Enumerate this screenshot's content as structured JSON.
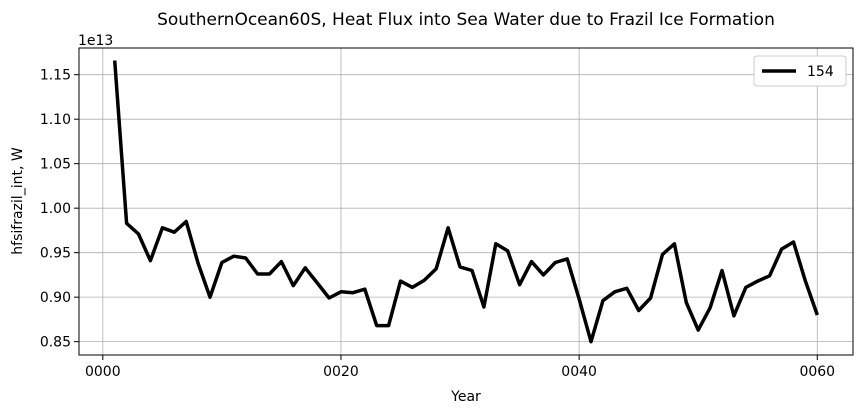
{
  "chart_data": {
    "type": "line",
    "title": "SouthernOcean60S, Heat Flux into Sea Water due to Frazil Ice Formation",
    "xlabel": "Year",
    "ylabel": "hfsifrazil_int, W",
    "y_offset_label": "1e13",
    "xlim": [
      -2,
      63
    ],
    "ylim": [
      0.835,
      1.18
    ],
    "x_ticks": [
      0,
      20,
      40,
      60
    ],
    "x_tick_labels": [
      "0000",
      "0020",
      "0040",
      "0060"
    ],
    "y_ticks": [
      0.85,
      0.9,
      0.95,
      1.0,
      1.05,
      1.1,
      1.15
    ],
    "y_tick_labels": [
      "0.85",
      "0.90",
      "0.95",
      "1.00",
      "1.05",
      "1.10",
      "1.15"
    ],
    "grid": true,
    "legend_position": "top-right",
    "series": [
      {
        "name": "154",
        "color": "#000000",
        "x": [
          1,
          2,
          3,
          4,
          5,
          6,
          7,
          8,
          9,
          10,
          11,
          12,
          13,
          14,
          15,
          16,
          17,
          18,
          19,
          20,
          21,
          22,
          23,
          24,
          25,
          26,
          27,
          28,
          29,
          30,
          31,
          32,
          33,
          34,
          35,
          36,
          37,
          38,
          39,
          40,
          41,
          42,
          43,
          44,
          45,
          46,
          47,
          48,
          49,
          50,
          51,
          52,
          53,
          54,
          55,
          56,
          57,
          58,
          59,
          60
        ],
        "values": [
          1.166,
          0.983,
          0.971,
          0.941,
          0.978,
          0.973,
          0.985,
          0.938,
          0.9,
          0.939,
          0.946,
          0.944,
          0.926,
          0.926,
          0.94,
          0.913,
          0.933,
          0.916,
          0.899,
          0.906,
          0.905,
          0.909,
          0.868,
          0.868,
          0.918,
          0.911,
          0.919,
          0.932,
          0.978,
          0.934,
          0.93,
          0.889,
          0.96,
          0.952,
          0.914,
          0.94,
          0.925,
          0.939,
          0.943,
          0.898,
          0.85,
          0.896,
          0.906,
          0.91,
          0.885,
          0.899,
          0.948,
          0.96,
          0.894,
          0.863,
          0.888,
          0.93,
          0.879,
          0.911,
          0.918,
          0.924,
          0.954,
          0.962,
          0.918,
          0.88
        ]
      }
    ]
  }
}
